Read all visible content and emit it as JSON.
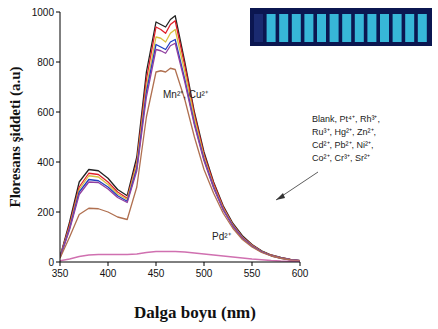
{
  "chart_data": {
    "type": "line",
    "x_label": "Dalga boyu (nm)",
    "y_label": "Floresans şiddeti (a.u)",
    "x": [
      350,
      360,
      370,
      380,
      390,
      400,
      410,
      420,
      430,
      440,
      450,
      455,
      460,
      465,
      470,
      480,
      490,
      500,
      510,
      520,
      530,
      540,
      550,
      560,
      570,
      580,
      590,
      600
    ],
    "series": [
      {
        "color": "#222222",
        "values": [
          20,
          160,
          320,
          370,
          365,
          335,
          290,
          265,
          420,
          760,
          960,
          950,
          940,
          970,
          985,
          800,
          600,
          440,
          320,
          225,
          155,
          105,
          70,
          45,
          28,
          18,
          10,
          5
        ]
      },
      {
        "color": "#e0202a",
        "values": [
          20,
          150,
          300,
          355,
          350,
          320,
          280,
          255,
          400,
          730,
          940,
          930,
          915,
          950,
          965,
          785,
          590,
          430,
          315,
          220,
          150,
          100,
          68,
          43,
          27,
          17,
          10,
          5
        ]
      },
      {
        "color": "#d8c040",
        "values": [
          18,
          140,
          290,
          345,
          340,
          310,
          272,
          250,
          390,
          700,
          900,
          895,
          880,
          915,
          930,
          760,
          575,
          420,
          305,
          215,
          148,
          98,
          66,
          42,
          26,
          16,
          9,
          5
        ]
      },
      {
        "color": "#2040c0",
        "values": [
          18,
          135,
          280,
          330,
          325,
          300,
          265,
          243,
          375,
          680,
          870,
          860,
          850,
          880,
          890,
          730,
          555,
          410,
          300,
          210,
          145,
          96,
          64,
          41,
          25,
          16,
          9,
          5
        ]
      },
      {
        "color": "#9040a0",
        "values": [
          17,
          130,
          270,
          320,
          318,
          292,
          258,
          238,
          365,
          660,
          850,
          845,
          835,
          865,
          875,
          720,
          548,
          405,
          296,
          208,
          143,
          95,
          63,
          40,
          25,
          15,
          9,
          5
        ]
      },
      {
        "color": "#b07050",
        "values": [
          15,
          100,
          190,
          215,
          213,
          200,
          180,
          170,
          300,
          580,
          760,
          765,
          760,
          775,
          770,
          650,
          500,
          370,
          275,
          195,
          135,
          90,
          60,
          38,
          24,
          15,
          8,
          4
        ]
      },
      {
        "color": "#d070b0",
        "values": [
          5,
          12,
          22,
          28,
          30,
          30,
          30,
          30,
          32,
          38,
          42,
          42,
          42,
          42,
          42,
          40,
          36,
          32,
          28,
          24,
          20,
          16,
          12,
          9,
          6,
          4,
          3,
          2
        ]
      }
    ],
    "annotations": [
      {
        "text": "Mn²⁺, Cu²⁺"
      },
      {
        "text": "Blank, Pt⁴⁺, Rh³⁺,\nRu³⁺, Hg²⁺, Zn²⁺,\nCd²⁺, Pb²⁺, Ni²⁺,\nCo²⁺, Cr³⁺, Sr²⁺"
      },
      {
        "text": "Pd²⁺"
      }
    ],
    "xlim": [
      350,
      600
    ],
    "ylim": [
      0,
      1000
    ],
    "xticks": [
      350,
      400,
      450,
      500,
      550,
      600
    ],
    "yticks": [
      0,
      200,
      400,
      600,
      800,
      1000
    ],
    "grid": false,
    "line_style": "solid",
    "marker": "none"
  }
}
